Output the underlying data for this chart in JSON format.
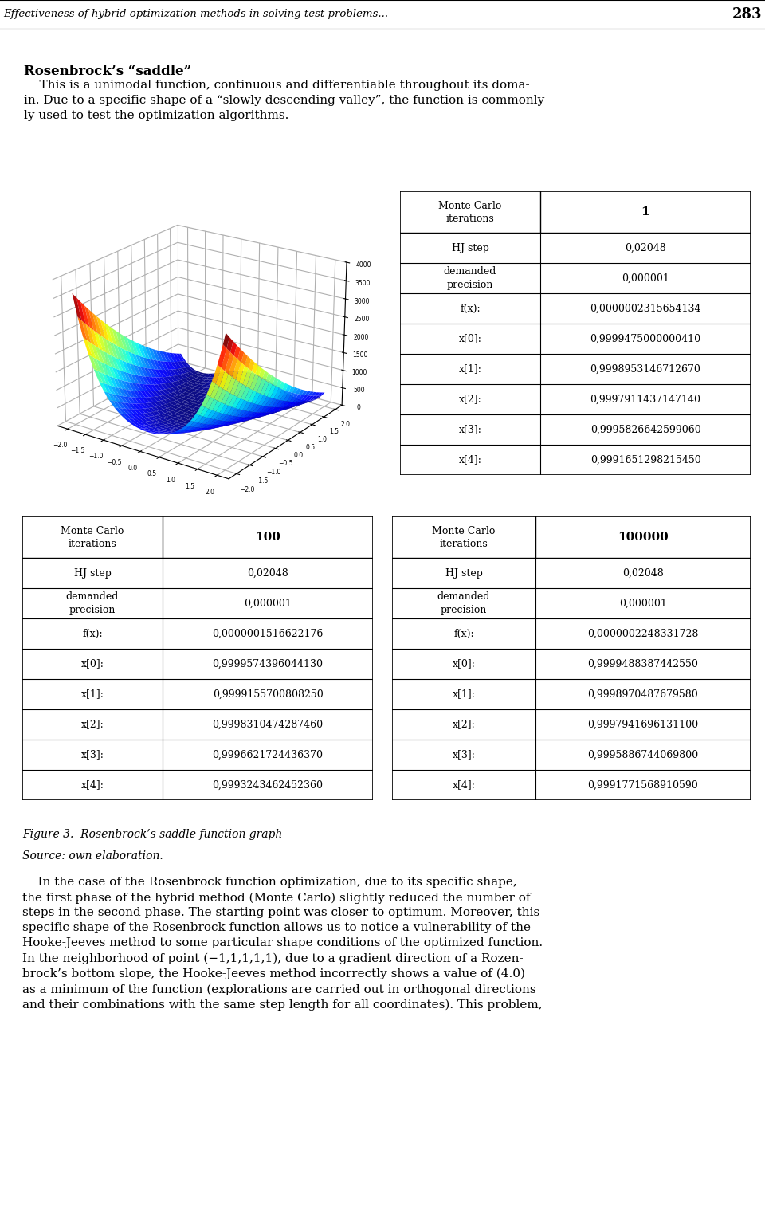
{
  "header_text": "Effectiveness of hybrid optimization methods in solving test problems...",
  "page_number": "283",
  "title_bold": "Rosenbrock’s “saddle”",
  "table1": {
    "header_col1": "Monte Carlo\niterations",
    "header_col2": "1",
    "rows": [
      [
        "HJ step",
        "0,02048"
      ],
      [
        "demanded\nprecision",
        "0,000001"
      ],
      [
        "f(x):",
        "0,0000002315654134"
      ],
      [
        "x[0]:",
        "0,9999475000000410"
      ],
      [
        "x[1]:",
        "0,9998953146712670"
      ],
      [
        "x[2]:",
        "0,9997911437147140"
      ],
      [
        "x[3]:",
        "0,9995826642599060"
      ],
      [
        "x[4]:",
        "0,9991651298215450"
      ]
    ]
  },
  "table2": {
    "header_col1": "Monte Carlo\niterations",
    "header_col2": "100",
    "rows": [
      [
        "HJ step",
        "0,02048"
      ],
      [
        "demanded\nprecision",
        "0,000001"
      ],
      [
        "f(x):",
        "0,0000001516622176"
      ],
      [
        "x[0]:",
        "0,9999574396044130"
      ],
      [
        "x[1]:",
        "0,9999155700808250"
      ],
      [
        "x[2]:",
        "0,9998310474287460"
      ],
      [
        "x[3]:",
        "0,9996621724436370"
      ],
      [
        "x[4]:",
        "0,9993243462452360"
      ]
    ]
  },
  "table3": {
    "header_col1": "Monte Carlo\niterations",
    "header_col2": "100000",
    "rows": [
      [
        "HJ step",
        "0,02048"
      ],
      [
        "demanded\nprecision",
        "0,000001"
      ],
      [
        "f(x):",
        "0,0000002248331728"
      ],
      [
        "x[0]:",
        "0,9999488387442550"
      ],
      [
        "x[1]:",
        "0,9998970487679580"
      ],
      [
        "x[2]:",
        "0,9997941696131100"
      ],
      [
        "x[3]:",
        "0,9995886744069800"
      ],
      [
        "x[4]:",
        "0,9991771568910590"
      ]
    ]
  },
  "figure_caption": "Figure 3.  Rosenbrock’s saddle function graph",
  "source_text": "Source: own elaboration.",
  "body_text": "    In the case of the Rosenbrock function optimization, due to its specific shape,\nthe first phase of the hybrid method (Monte Carlo) slightly reduced the number of\nsteps in the second phase. The starting point was closer to optimum. Moreover, this\nspecific shape of the Rosenbrock function allows us to notice a vulnerability of the\nHooke-Jeeves method to some particular shape conditions of the optimized function.\nIn the neighborhood of point (−1,1,1,1,1), due to a gradient direction of a Rozen-\nbrock’s bottom slope, the Hooke-Jeeves method incorrectly shows a value of (4.0)\nas a minimum of the function (explorations are carried out in orthogonal directions\nand their combinations with the same step length for all coordinates). This problem,",
  "bg_color": "#ffffff",
  "text_color": "#000000"
}
